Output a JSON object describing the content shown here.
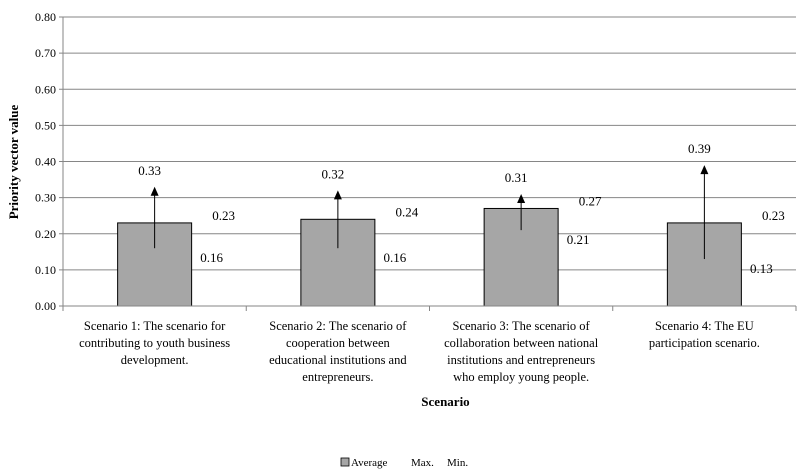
{
  "chart_data": {
    "type": "bar",
    "title": "",
    "xlabel": "Scenario",
    "ylabel": "Priority vector value",
    "ylim": [
      0,
      0.8
    ],
    "yticks": [
      "0.00",
      "0.10",
      "0.20",
      "0.30",
      "0.40",
      "0.50",
      "0.60",
      "0.70",
      "0.80"
    ],
    "grid": "horizontal",
    "legend": {
      "placement": "bottom",
      "items": [
        "Average",
        "Max.",
        "Min."
      ]
    },
    "categories": [
      [
        "Scenario 1: The scenario for",
        "contributing to youth business",
        "development."
      ],
      [
        "Scenario 2: The scenario of",
        "cooperation between",
        "educational institutions and",
        "entrepreneurs."
      ],
      [
        "Scenario 3: The scenario of",
        "collaboration between national",
        "institutions and entrepreneurs",
        "who employ young people."
      ],
      [
        "Scenario 4: The EU",
        "participation scenario."
      ]
    ],
    "series": [
      {
        "name": "Average",
        "values": [
          0.23,
          0.24,
          0.27,
          0.23
        ],
        "labels": [
          "0.23",
          "0.24",
          "0.27",
          "0.23"
        ]
      },
      {
        "name": "Max.",
        "values": [
          0.33,
          0.32,
          0.31,
          0.39
        ],
        "labels": [
          "0.33",
          "0.32",
          "0.31",
          "0.39"
        ]
      },
      {
        "name": "Min.",
        "values": [
          0.16,
          0.16,
          0.21,
          0.13
        ],
        "labels": [
          "0.16",
          "0.16",
          "0.21",
          "0.13"
        ]
      }
    ],
    "colors": {
      "bar": "#a6a6a6",
      "bar_edge": "#000000",
      "grid": "#868686",
      "axis": "#868686"
    }
  }
}
